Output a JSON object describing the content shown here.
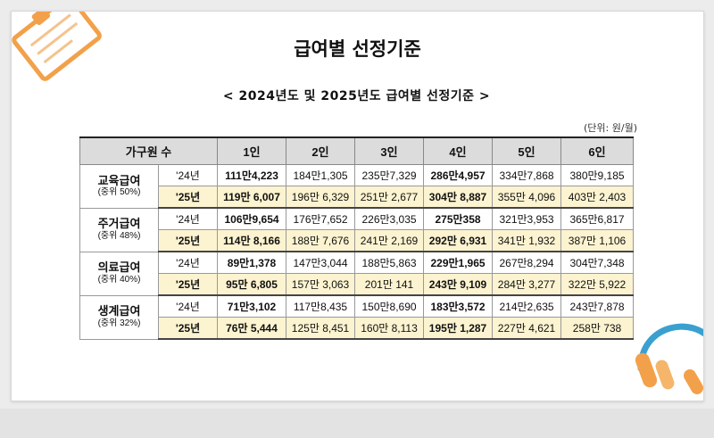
{
  "page_title": "급여별 선정기준",
  "table_title": "< 2024년도 및 2025년도 급여별 선정기준 >",
  "unit_label": "(단위: 원/월)",
  "headers": [
    "가구원 수",
    "1인",
    "2인",
    "3인",
    "4인",
    "5인",
    "6인"
  ],
  "groups": [
    {
      "name": "교육급여",
      "pct": "(중위 50%)",
      "rows": [
        {
          "year": "'24년",
          "values": [
            "111만4,223",
            "184만1,305",
            "235만7,329",
            "286만4,957",
            "334만7,868",
            "380만9,185"
          ]
        },
        {
          "year": "'25년",
          "values": [
            "119만 6,007",
            "196만 6,329",
            "251만 2,677",
            "304만 8,887",
            "355만 4,096",
            "403만 2,403"
          ]
        }
      ]
    },
    {
      "name": "주거급여",
      "pct": "(중위 48%)",
      "rows": [
        {
          "year": "'24년",
          "values": [
            "106만9,654",
            "176만7,652",
            "226만3,035",
            "275만358",
            "321만3,953",
            "365만6,817"
          ]
        },
        {
          "year": "'25년",
          "values": [
            "114만 8,166",
            "188만 7,676",
            "241만 2,169",
            "292만 6,931",
            "341만 1,932",
            "387만 1,106"
          ]
        }
      ]
    },
    {
      "name": "의료급여",
      "pct": "(중위 40%)",
      "rows": [
        {
          "year": "'24년",
          "values": [
            "89만1,378",
            "147만3,044",
            "188만5,863",
            "229만1,965",
            "267만8,294",
            "304만7,348"
          ]
        },
        {
          "year": "'25년",
          "values": [
            "95만 6,805",
            "157만 3,063",
            "201만 141",
            "243만 9,109",
            "284만 3,277",
            "322만 5,922"
          ]
        }
      ]
    },
    {
      "name": "생계급여",
      "pct": "(중위 32%)",
      "rows": [
        {
          "year": "'24년",
          "values": [
            "71만3,102",
            "117만8,435",
            "150만8,690",
            "183만3,572",
            "214만2,635",
            "243만7,878"
          ]
        },
        {
          "year": "'25년",
          "values": [
            "76만 5,444",
            "125만 8,451",
            "160만 8,113",
            "195만 1,287",
            "227만 4,621",
            "258만 738"
          ]
        }
      ]
    }
  ],
  "colors": {
    "highlight_row": "#fcf3d0",
    "header_bg": "#dcdcdc",
    "clipboard_orange": "#f2a14a",
    "headset_blue": "#3aa0d0"
  },
  "icons": [
    "clipboard-icon",
    "headset-icon"
  ]
}
